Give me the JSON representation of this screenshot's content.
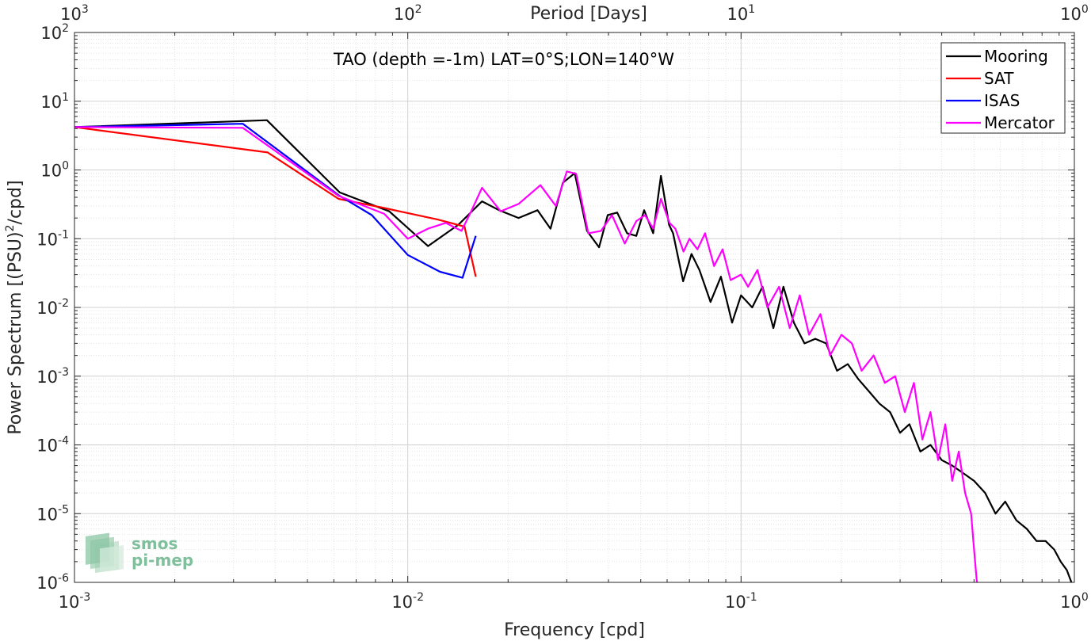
{
  "chart_data": {
    "type": "line",
    "title": "TAO (depth =-1m) LAT=0°S;LON=140°W",
    "xlabel": "Frequency [cpd]",
    "ylabel": "Power Spectrum [(PSU)",
    "ylabel_sup": "2",
    "ylabel_tail": "/cpd]",
    "x2label": "Period [Days]",
    "xscale": "log",
    "yscale": "log",
    "xlim": [
      0.001,
      1
    ],
    "ylim": [
      1e-06,
      100
    ],
    "grid": true,
    "legend_position": "top-right",
    "x_ticks": [
      {
        "value": 0.001,
        "base": "10",
        "exp": "-3"
      },
      {
        "value": 0.01,
        "base": "10",
        "exp": "-2"
      },
      {
        "value": 0.1,
        "base": "10",
        "exp": "-1"
      },
      {
        "value": 1,
        "base": "10",
        "exp": "0"
      }
    ],
    "x2_ticks": [
      {
        "value": 0.001,
        "base": "10",
        "exp": "3"
      },
      {
        "value": 0.01,
        "base": "10",
        "exp": "2"
      },
      {
        "value": 0.1,
        "base": "10",
        "exp": "1"
      },
      {
        "value": 1,
        "base": "10",
        "exp": "0"
      }
    ],
    "y_ticks": [
      {
        "value": 1e-06,
        "base": "10",
        "exp": "-6"
      },
      {
        "value": 1e-05,
        "base": "10",
        "exp": "-5"
      },
      {
        "value": 0.0001,
        "base": "10",
        "exp": "-4"
      },
      {
        "value": 0.001,
        "base": "10",
        "exp": "-3"
      },
      {
        "value": 0.01,
        "base": "10",
        "exp": "-2"
      },
      {
        "value": 0.1,
        "base": "10",
        "exp": "-1"
      },
      {
        "value": 1,
        "base": "10",
        "exp": "0"
      },
      {
        "value": 10,
        "base": "10",
        "exp": "1"
      },
      {
        "value": 100,
        "base": "10",
        "exp": "2"
      }
    ],
    "series": [
      {
        "name": "Mooring",
        "color": "#000000",
        "x": [
          0.001,
          0.00378,
          0.00625,
          0.0088,
          0.0115,
          0.0142,
          0.0167,
          0.0188,
          0.0215,
          0.0245,
          0.0268,
          0.0292,
          0.0317,
          0.0345,
          0.0375,
          0.0398,
          0.0425,
          0.0455,
          0.0485,
          0.0512,
          0.0545,
          0.0575,
          0.0608,
          0.0625,
          0.067,
          0.071,
          0.075,
          0.081,
          0.087,
          0.094,
          0.1,
          0.108,
          0.116,
          0.125,
          0.134,
          0.144,
          0.155,
          0.167,
          0.18,
          0.194,
          0.209,
          0.225,
          0.242,
          0.26,
          0.28,
          0.3,
          0.32,
          0.345,
          0.37,
          0.4,
          0.43,
          0.46,
          0.5,
          0.54,
          0.58,
          0.62,
          0.67,
          0.72,
          0.77,
          0.82,
          0.87,
          0.91,
          0.95,
          0.98
        ],
        "y": [
          4.2,
          5.3,
          0.47,
          0.25,
          0.078,
          0.16,
          0.35,
          0.26,
          0.2,
          0.26,
          0.14,
          0.65,
          0.9,
          0.13,
          0.075,
          0.22,
          0.24,
          0.12,
          0.11,
          0.26,
          0.12,
          0.82,
          0.16,
          0.12,
          0.024,
          0.06,
          0.035,
          0.012,
          0.028,
          0.006,
          0.015,
          0.01,
          0.02,
          0.005,
          0.02,
          0.006,
          0.003,
          0.0035,
          0.003,
          0.0012,
          0.0015,
          0.0009,
          0.0006,
          0.0004,
          0.0003,
          0.00015,
          0.0002,
          8e-05,
          0.0001,
          6e-05,
          5e-05,
          4e-05,
          3e-05,
          2e-05,
          1e-05,
          1.5e-05,
          8e-06,
          6e-06,
          4e-06,
          4e-06,
          3e-06,
          2e-06,
          1.5e-06,
          1e-06
        ]
      },
      {
        "name": "SAT",
        "color": "#ff0000",
        "x": [
          0.001,
          0.0038,
          0.0062,
          0.0085,
          0.0123,
          0.0148,
          0.016
        ],
        "y": [
          4.2,
          1.8,
          0.38,
          0.28,
          0.19,
          0.15,
          0.028
        ]
      },
      {
        "name": "ISAS",
        "color": "#0000ff",
        "x": [
          0.001,
          0.0032,
          0.0062,
          0.0078,
          0.01,
          0.0125,
          0.0146,
          0.016
        ],
        "y": [
          4.2,
          4.7,
          0.43,
          0.22,
          0.058,
          0.033,
          0.027,
          0.11
        ]
      },
      {
        "name": "Mercator",
        "color": "#ff00ff",
        "x": [
          0.001,
          0.0032,
          0.0062,
          0.0085,
          0.01,
          0.0115,
          0.013,
          0.0145,
          0.0155,
          0.0167,
          0.019,
          0.0215,
          0.025,
          0.0278,
          0.03,
          0.032,
          0.0348,
          0.038,
          0.041,
          0.0448,
          0.0485,
          0.0515,
          0.0545,
          0.0575,
          0.061,
          0.0635,
          0.0672,
          0.07,
          0.074,
          0.078,
          0.083,
          0.088,
          0.093,
          0.1,
          0.105,
          0.112,
          0.12,
          0.13,
          0.14,
          0.15,
          0.16,
          0.173,
          0.185,
          0.2,
          0.215,
          0.23,
          0.25,
          0.27,
          0.29,
          0.31,
          0.33,
          0.35,
          0.37,
          0.39,
          0.41,
          0.43,
          0.45,
          0.47,
          0.49,
          0.5,
          0.51
        ],
        "y": [
          4.2,
          4.1,
          0.42,
          0.23,
          0.1,
          0.14,
          0.17,
          0.13,
          0.25,
          0.55,
          0.25,
          0.32,
          0.6,
          0.3,
          0.95,
          0.88,
          0.12,
          0.13,
          0.22,
          0.085,
          0.18,
          0.22,
          0.14,
          0.38,
          0.17,
          0.14,
          0.065,
          0.1,
          0.07,
          0.12,
          0.04,
          0.07,
          0.025,
          0.03,
          0.02,
          0.035,
          0.01,
          0.02,
          0.005,
          0.015,
          0.004,
          0.008,
          0.002,
          0.004,
          0.003,
          0.0012,
          0.002,
          0.0008,
          0.001,
          0.0003,
          0.0008,
          0.00012,
          0.0003,
          6e-05,
          0.0002,
          3e-05,
          8e-05,
          2e-05,
          1e-05,
          3e-06,
          1e-06
        ]
      }
    ]
  },
  "logo": {
    "line1": "smos",
    "line2": "pi-mep",
    "color": "#7fbf9c"
  }
}
